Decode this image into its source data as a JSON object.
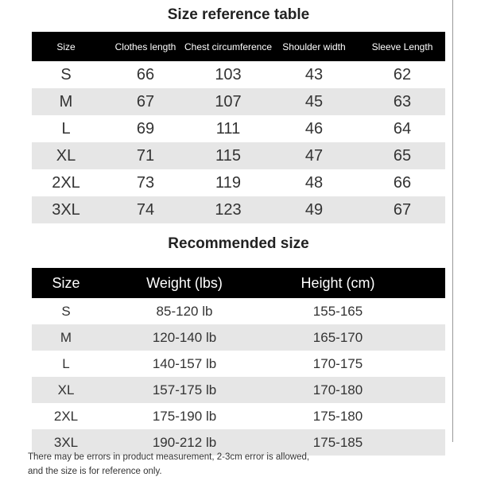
{
  "table1": {
    "title": "Size reference table",
    "headers": [
      "Size",
      "Clothes length",
      "Chest circumference",
      "Shoulder width",
      "Sleeve Length"
    ],
    "rows": [
      [
        "S",
        "66",
        "103",
        "43",
        "62"
      ],
      [
        "M",
        "67",
        "107",
        "45",
        "63"
      ],
      [
        "L",
        "69",
        "111",
        "46",
        "64"
      ],
      [
        "XL",
        "71",
        "115",
        "47",
        "65"
      ],
      [
        "2XL",
        "73",
        "119",
        "48",
        "66"
      ],
      [
        "3XL",
        "74",
        "123",
        "49",
        "67"
      ]
    ]
  },
  "table2": {
    "title": "Recommended size",
    "headers": [
      "Size",
      "Weight (lbs)",
      "Height (cm)"
    ],
    "rows": [
      [
        "S",
        "85-120 lb",
        "155-165"
      ],
      [
        "M",
        "120-140 lb",
        "165-170"
      ],
      [
        "L",
        "140-157 lb",
        "170-175"
      ],
      [
        "XL",
        "157-175 lb",
        "170-180"
      ],
      [
        "2XL",
        "175-190 lb",
        "175-180"
      ],
      [
        "3XL",
        "190-212 lb",
        "175-185"
      ]
    ]
  },
  "note": {
    "line1": "There may be errors in product measurement, 2-3cm error is allowed,",
    "line2": "and the size is for reference only."
  },
  "colors": {
    "header_bg": "#000000",
    "stripe": "#e6e6e6"
  }
}
